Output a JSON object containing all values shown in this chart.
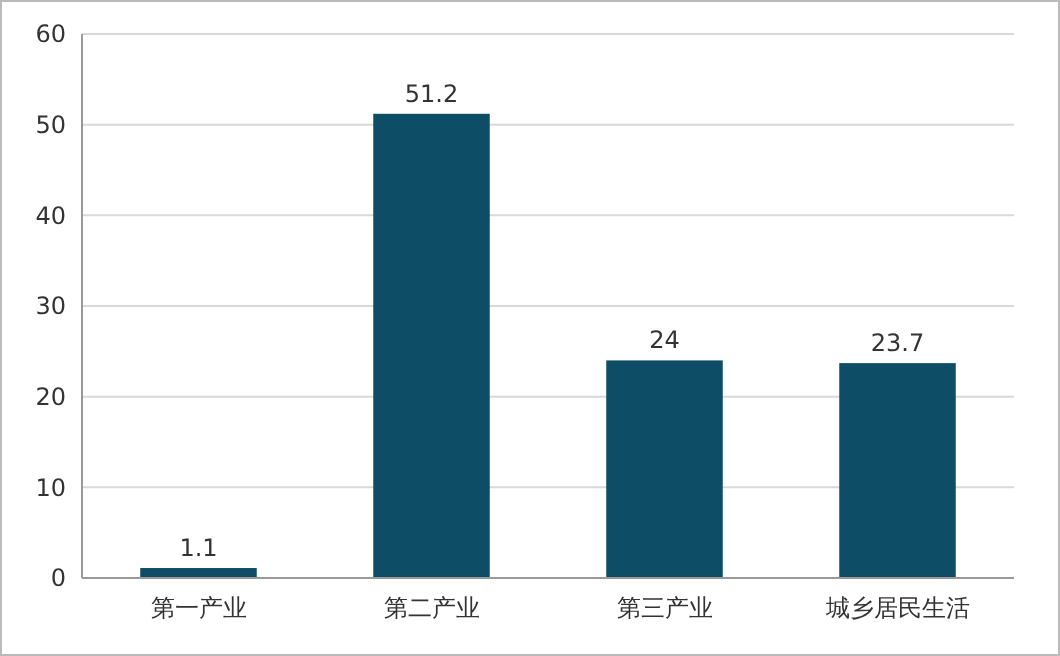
{
  "chart_data": {
    "type": "bar",
    "categories": [
      "第一产业",
      "第二产业",
      "第三产业",
      "城乡居民生活"
    ],
    "values": [
      1.1,
      51.2,
      24,
      23.7
    ],
    "color": "#0d4e66",
    "ylim": [
      0,
      60
    ],
    "yticks": [
      0,
      10,
      20,
      30,
      40,
      50,
      60
    ],
    "grid": "y",
    "data_labels": true
  }
}
